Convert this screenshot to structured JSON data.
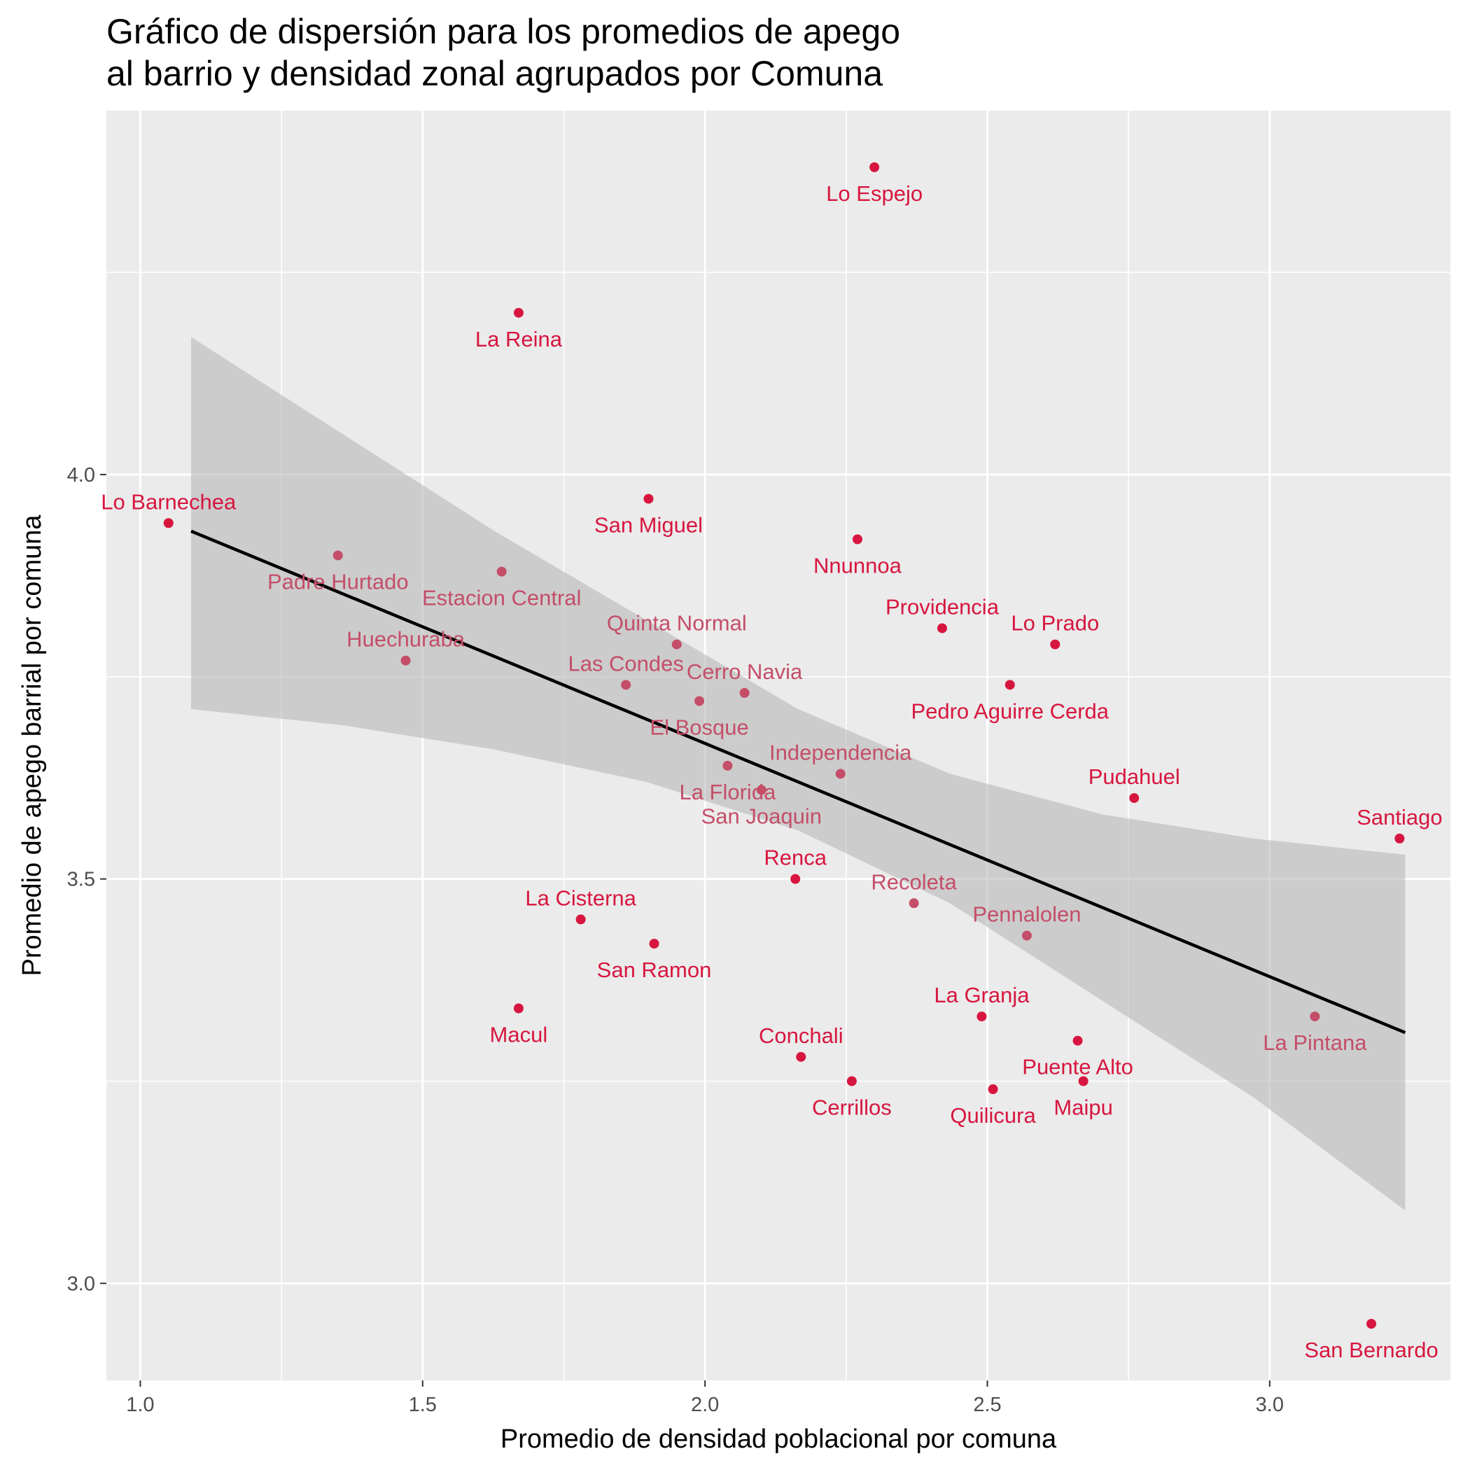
{
  "chart_data": {
    "type": "scatter",
    "title": "Gráfico de dispersión para los promedios de apego\nal barrio y densidad zonal agrupados por Comuna",
    "xlabel": "Promedio de densidad poblacional por comuna",
    "ylabel": "Promedio de apego barrial por comuna",
    "xlim": [
      0.94,
      3.32
    ],
    "ylim": [
      2.88,
      4.45
    ],
    "x_ticks": [
      "1.0",
      "1.5",
      "2.0",
      "2.5",
      "3.0"
    ],
    "y_ticks": [
      "3.0",
      "3.5",
      "4.0"
    ],
    "grid": true,
    "colors": {
      "panel": "#ebebeb",
      "grid": "#ffffff",
      "point_strong": "#d7163f",
      "point_muted": "#c44e68",
      "trend_line": "#000000",
      "confidence_band": "#b3b3b3"
    },
    "points": [
      {
        "label": "Lo Espejo",
        "x": 2.3,
        "y": 4.38,
        "muted": false,
        "label_pos": "below"
      },
      {
        "label": "La Reina",
        "x": 1.67,
        "y": 4.2,
        "muted": false,
        "label_pos": "below"
      },
      {
        "label": "Lo Barnechea",
        "x": 1.05,
        "y": 3.94,
        "muted": false,
        "label_pos": "above"
      },
      {
        "label": "San Miguel",
        "x": 1.9,
        "y": 3.97,
        "muted": false,
        "label_pos": "below"
      },
      {
        "label": "Nnunnoa",
        "x": 2.27,
        "y": 3.92,
        "muted": false,
        "label_pos": "below"
      },
      {
        "label": "Padre Hurtado",
        "x": 1.35,
        "y": 3.9,
        "muted": true,
        "label_pos": "below"
      },
      {
        "label": "Estacion Central",
        "x": 1.64,
        "y": 3.88,
        "muted": true,
        "label_pos": "below"
      },
      {
        "label": "Providencia",
        "x": 2.42,
        "y": 3.81,
        "muted": false,
        "label_pos": "above"
      },
      {
        "label": "Lo Prado",
        "x": 2.62,
        "y": 3.79,
        "muted": false,
        "label_pos": "above"
      },
      {
        "label": "Quinta Normal",
        "x": 1.95,
        "y": 3.79,
        "muted": true,
        "label_pos": "above"
      },
      {
        "label": "Huechuraba",
        "x": 1.47,
        "y": 3.77,
        "muted": true,
        "label_pos": "above"
      },
      {
        "label": "Las Condes",
        "x": 1.86,
        "y": 3.74,
        "muted": true,
        "label_pos": "above"
      },
      {
        "label": "Cerro Navia",
        "x": 2.07,
        "y": 3.73,
        "muted": true,
        "label_pos": "above"
      },
      {
        "label": "Pedro Aguirre Cerda",
        "x": 2.54,
        "y": 3.74,
        "muted": false,
        "label_pos": "below"
      },
      {
        "label": "El Bosque",
        "x": 1.99,
        "y": 3.72,
        "muted": true,
        "label_pos": "below"
      },
      {
        "label": "Independencia",
        "x": 2.24,
        "y": 3.63,
        "muted": true,
        "label_pos": "above"
      },
      {
        "label": "La Florida",
        "x": 2.04,
        "y": 3.64,
        "muted": true,
        "label_pos": "below"
      },
      {
        "label": "San Joaquin",
        "x": 2.1,
        "y": 3.61,
        "muted": true,
        "label_pos": "below"
      },
      {
        "label": "Pudahuel",
        "x": 2.76,
        "y": 3.6,
        "muted": false,
        "label_pos": "above"
      },
      {
        "label": "Santiago",
        "x": 3.23,
        "y": 3.55,
        "muted": false,
        "label_pos": "above"
      },
      {
        "label": "Renca",
        "x": 2.16,
        "y": 3.5,
        "muted": false,
        "label_pos": "above"
      },
      {
        "label": "Recoleta",
        "x": 2.37,
        "y": 3.47,
        "muted": true,
        "label_pos": "above"
      },
      {
        "label": "La Cisterna",
        "x": 1.78,
        "y": 3.45,
        "muted": false,
        "label_pos": "above"
      },
      {
        "label": "Pennalolen",
        "x": 2.57,
        "y": 3.43,
        "muted": true,
        "label_pos": "above"
      },
      {
        "label": "San Ramon",
        "x": 1.91,
        "y": 3.42,
        "muted": false,
        "label_pos": "below"
      },
      {
        "label": "Macul",
        "x": 1.67,
        "y": 3.34,
        "muted": false,
        "label_pos": "below"
      },
      {
        "label": "La Granja",
        "x": 2.49,
        "y": 3.33,
        "muted": false,
        "label_pos": "above"
      },
      {
        "label": "La Pintana",
        "x": 3.08,
        "y": 3.33,
        "muted": true,
        "label_pos": "below"
      },
      {
        "label": "Puente Alto",
        "x": 2.66,
        "y": 3.3,
        "muted": false,
        "label_pos": "below"
      },
      {
        "label": "Conchali",
        "x": 2.17,
        "y": 3.28,
        "muted": false,
        "label_pos": "above"
      },
      {
        "label": "Cerrillos",
        "x": 2.26,
        "y": 3.25,
        "muted": false,
        "label_pos": "below"
      },
      {
        "label": "Maipu",
        "x": 2.67,
        "y": 3.25,
        "muted": false,
        "label_pos": "below"
      },
      {
        "label": "Quilicura",
        "x": 2.51,
        "y": 3.24,
        "muted": false,
        "label_pos": "below"
      },
      {
        "label": "San Bernardo",
        "x": 3.18,
        "y": 2.95,
        "muted": false,
        "label_pos": "below"
      }
    ],
    "trend": {
      "x": [
        1.09,
        3.24
      ],
      "y": [
        3.93,
        3.31
      ],
      "band_upper": [
        4.17,
        4.05,
        3.93,
        3.82,
        3.71,
        3.63,
        3.58,
        3.55,
        3.53
      ],
      "band_lower": [
        3.71,
        3.69,
        3.66,
        3.62,
        3.56,
        3.47,
        3.35,
        3.23,
        3.09
      ]
    }
  }
}
